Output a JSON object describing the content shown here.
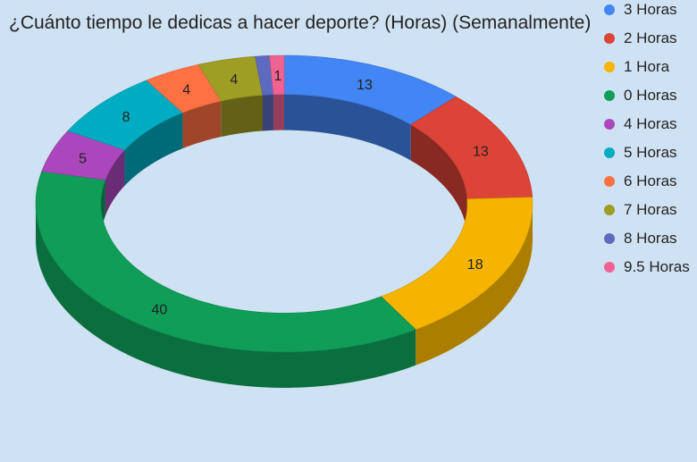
{
  "chart_data": {
    "type": "pie",
    "title": "¿Cuánto tiempo le dedicas a hacer deporte? (Horas) (Semanalmente)",
    "categories": [
      "3 Horas",
      "2 Horas",
      "1 Hora",
      "0 Horas",
      "4 Horas",
      "5 Horas",
      "6 Horas",
      "7 Horas",
      "8 Horas",
      "9.5 Horas"
    ],
    "values": [
      13,
      13,
      18,
      40,
      5,
      8,
      4,
      4,
      1,
      1
    ],
    "data_labels": [
      "13",
      "13",
      "18",
      "40",
      "5",
      "8",
      "4",
      "4",
      "",
      "1"
    ],
    "colors": [
      "#4285f4",
      "#db4437",
      "#f4b400",
      "#0f9d58",
      "#ab47bc",
      "#00acc1",
      "#ff7043",
      "#9e9d24",
      "#5c6bc0",
      "#f06292"
    ],
    "style": "3d-donut",
    "legend_position": "right"
  }
}
